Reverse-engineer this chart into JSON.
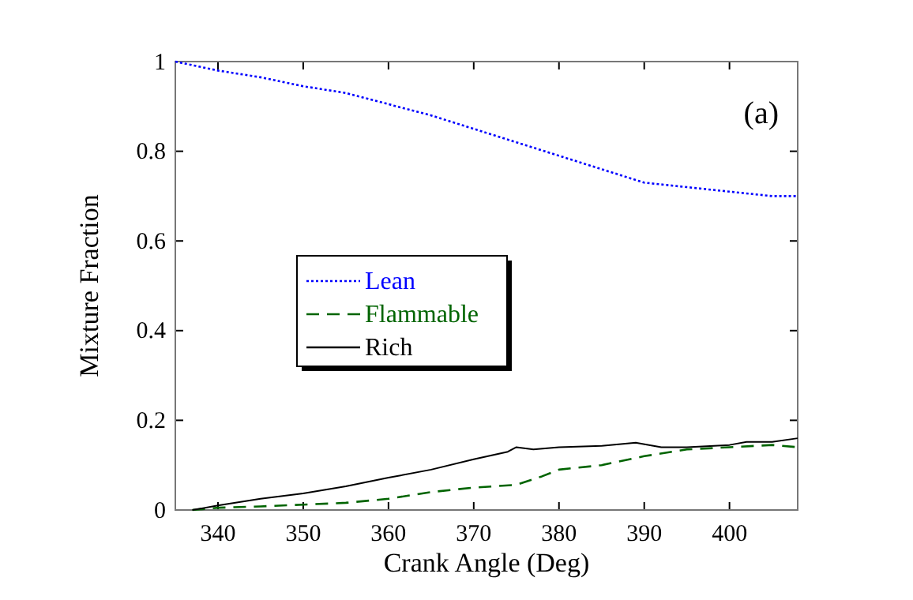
{
  "chart_data": {
    "type": "line",
    "xlabel": "Crank Angle (Deg)",
    "ylabel": "Mixture Fraction",
    "annotations": [
      "(a)"
    ],
    "xlim": [
      335,
      408
    ],
    "xticks": [
      340,
      350,
      360,
      370,
      380,
      390,
      400
    ],
    "ylim": [
      0,
      1
    ],
    "yticks": [
      0,
      0.2,
      0.4,
      0.6,
      0.8,
      1
    ],
    "legend": "left",
    "grid": false,
    "series": [
      {
        "name": "Lean",
        "color": "#0000ff",
        "line_style": "dotted",
        "x": [
          335,
          340,
          345,
          350,
          355,
          360,
          365,
          370,
          375,
          380,
          385,
          390,
          395,
          400,
          405,
          408
        ],
        "values": [
          1.0,
          0.98,
          0.965,
          0.945,
          0.93,
          0.905,
          0.88,
          0.85,
          0.82,
          0.79,
          0.76,
          0.73,
          0.72,
          0.71,
          0.7,
          0.7
        ]
      },
      {
        "name": "Flammable",
        "color": "#006400",
        "line_style": "dashed",
        "x": [
          337,
          340,
          345,
          350,
          355,
          360,
          365,
          370,
          375,
          378,
          380,
          385,
          390,
          395,
          400,
          405,
          408
        ],
        "values": [
          0,
          0.005,
          0.008,
          0.012,
          0.016,
          0.025,
          0.04,
          0.05,
          0.056,
          0.075,
          0.09,
          0.1,
          0.12,
          0.135,
          0.14,
          0.145,
          0.14
        ]
      },
      {
        "name": "Rich",
        "color": "#000000",
        "line_style": "solid",
        "x": [
          337,
          340,
          345,
          350,
          355,
          360,
          365,
          370,
          374,
          375,
          377,
          380,
          385,
          389,
          392,
          395,
          400,
          402,
          405,
          408
        ],
        "values": [
          0,
          0.01,
          0.025,
          0.037,
          0.053,
          0.072,
          0.09,
          0.113,
          0.13,
          0.14,
          0.135,
          0.14,
          0.143,
          0.15,
          0.14,
          0.14,
          0.145,
          0.152,
          0.152,
          0.16
        ]
      }
    ]
  }
}
